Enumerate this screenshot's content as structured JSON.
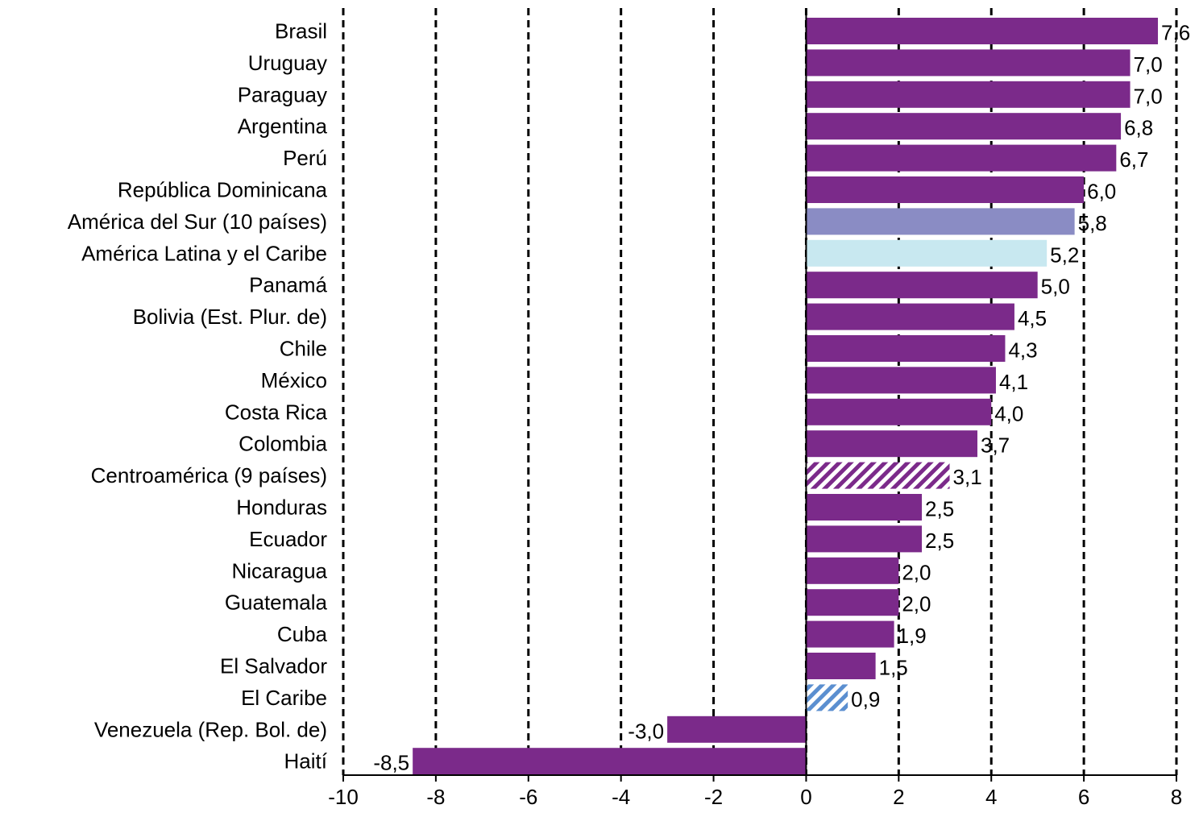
{
  "chart_data": {
    "type": "bar",
    "orientation": "horizontal",
    "categories": [
      "Brasil",
      "Uruguay",
      "Paraguay",
      "Argentina",
      "Perú",
      "República Dominicana",
      "América del Sur (10 países)",
      "América Latina y el Caribe",
      "Panamá",
      "Bolivia (Est. Plur. de)",
      "Chile",
      "México",
      "Costa Rica",
      "Colombia",
      "Centroamérica (9 países)",
      "Honduras",
      "Ecuador",
      "Nicaragua",
      "Guatemala",
      "Cuba",
      "El Salvador",
      "El Caribe",
      "Venezuela (Rep. Bol. de)",
      "Haití"
    ],
    "values": [
      7.6,
      7.0,
      7.0,
      6.8,
      6.7,
      6.0,
      5.8,
      5.2,
      5.0,
      4.5,
      4.3,
      4.1,
      4.0,
      3.7,
      3.1,
      2.5,
      2.5,
      2.0,
      2.0,
      1.9,
      1.5,
      0.9,
      -3.0,
      -8.5
    ],
    "value_labels": [
      "7,6",
      "7,0",
      "7,0",
      "6,8",
      "6,7",
      "6,0",
      "5,8",
      "5,2",
      "5,0",
      "4,5",
      "4,3",
      "4,1",
      "4,0",
      "3,7",
      "3,1",
      "2,5",
      "2,5",
      "2,0",
      "2,0",
      "1,9",
      "1,5",
      "0,9",
      "-3,0",
      "-8,5"
    ],
    "bar_styles": [
      "solid",
      "solid",
      "solid",
      "solid",
      "solid",
      "solid",
      "sur",
      "alc",
      "solid",
      "solid",
      "solid",
      "solid",
      "solid",
      "solid",
      "hatch-purple",
      "solid",
      "solid",
      "solid",
      "solid",
      "solid",
      "solid",
      "hatch-blue",
      "solid",
      "solid"
    ],
    "xlim": [
      -10,
      8
    ],
    "x_ticks": [
      -10,
      -8,
      -6,
      -4,
      -2,
      0,
      2,
      4,
      6,
      8
    ],
    "x_tick_labels": [
      "-10",
      "-8",
      "-6",
      "-4",
      "-2",
      "0",
      "2",
      "4",
      "6",
      "8"
    ],
    "grid": "vertical-dashed",
    "title": "",
    "xlabel": "",
    "ylabel": "",
    "colors": {
      "solid": "#7b2a8a",
      "sur": "#8a8cc4",
      "alc": "#c8e8f0",
      "hatch_purple": "#7b2a8a",
      "hatch_blue": "#5b8fd0",
      "grid": "#000000"
    }
  }
}
